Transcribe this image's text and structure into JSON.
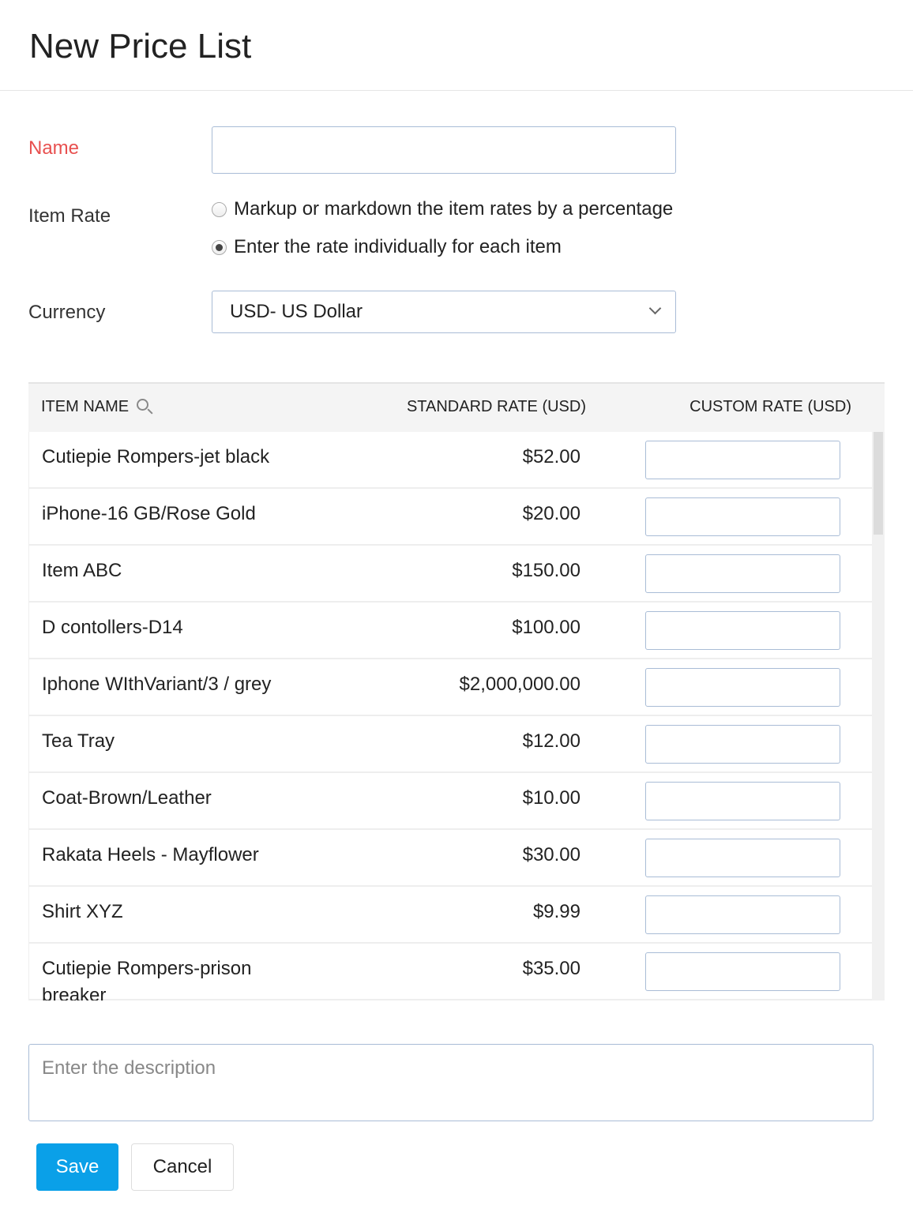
{
  "page": {
    "title": "New Price List"
  },
  "form": {
    "name_label": "Name",
    "name_value": "",
    "item_rate_label": "Item Rate",
    "rate_options": [
      {
        "label": "Markup or markdown the item rates by a percentage",
        "selected": false
      },
      {
        "label": "Enter the rate individually for each item",
        "selected": true
      }
    ],
    "currency_label": "Currency",
    "currency_value": "USD- US Dollar"
  },
  "table": {
    "columns": [
      "ITEM NAME",
      "STANDARD RATE (USD)",
      "CUSTOM RATE (USD)"
    ],
    "rows": [
      {
        "name": "Cutiepie Rompers-jet black",
        "standard_rate": "$52.00",
        "custom_rate": ""
      },
      {
        "name": "iPhone-16 GB/Rose Gold",
        "standard_rate": "$20.00",
        "custom_rate": ""
      },
      {
        "name": "Item ABC",
        "standard_rate": "$150.00",
        "custom_rate": ""
      },
      {
        "name": "D contollers-D14",
        "standard_rate": "$100.00",
        "custom_rate": ""
      },
      {
        "name": "Iphone WIthVariant/3 / grey",
        "standard_rate": "$2,000,000.00",
        "custom_rate": ""
      },
      {
        "name": "Tea Tray",
        "standard_rate": "$12.00",
        "custom_rate": ""
      },
      {
        "name": "Coat-Brown/Leather",
        "standard_rate": "$10.00",
        "custom_rate": ""
      },
      {
        "name": "Rakata Heels - Mayflower",
        "standard_rate": "$30.00",
        "custom_rate": ""
      },
      {
        "name": "Shirt XYZ",
        "standard_rate": "$9.99",
        "custom_rate": ""
      },
      {
        "name": "Cutiepie Rompers-prison breaker",
        "standard_rate": "$35.00",
        "custom_rate": ""
      }
    ]
  },
  "description": {
    "placeholder": "Enter the description",
    "value": ""
  },
  "actions": {
    "save": "Save",
    "cancel": "Cancel"
  },
  "colors": {
    "accent": "#0aa0e8",
    "required": "#e8504f"
  }
}
